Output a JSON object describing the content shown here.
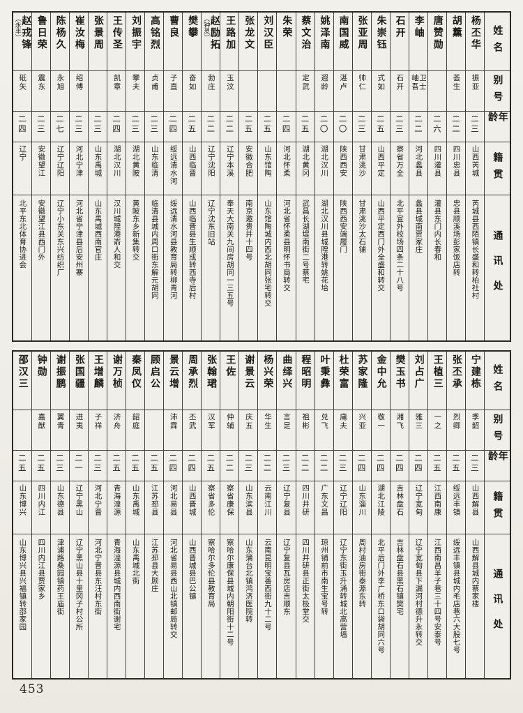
{
  "page": {
    "number": "453"
  },
  "header_labels": {
    "name": "姓名",
    "alias": "别号",
    "age": "年龄",
    "native": "籍贯",
    "contact": "通讯处"
  },
  "top_table": {
    "persons": [
      {
        "name": "杨丕华",
        "alias": "振亚",
        "age": "二三",
        "native": "山西芮城",
        "addr": "芮城县西陌镇长盛和转柏社村"
      },
      {
        "name": "胡薰",
        "alias": "荟生",
        "age": "二二",
        "native": "四川忠县",
        "addr": "忠县顺溪场彭家饭店转"
      },
      {
        "name": "唐赞勋",
        "alias": "",
        "age": "二六",
        "native": "四川灌县",
        "addr": "灌县东门内长春和"
      },
      {
        "name": "李岫",
        "alias": "卫士",
        "alias2": "岫吾",
        "age": "二二",
        "native": "河北蠡县",
        "addr": "蠡县城南贾家庄"
      },
      {
        "name": "石开",
        "alias": "石开",
        "age": "二三",
        "native": "察省万全",
        "addr": "北平宣外校场四条二十八号"
      },
      {
        "name": "朱崇钰",
        "alias": "式如",
        "age": "二五",
        "native": "山西平定",
        "addr": "山西平定西门外全盛和转交"
      },
      {
        "name": "张亚周",
        "alias": "帅仁",
        "age": "二三",
        "native": "甘肃洮沙",
        "addr": "甘肃洮沙太石铺"
      },
      {
        "name": "南国威",
        "alias": "湛卢",
        "age": "二〇",
        "native": "陕西西安",
        "addr": "陕西西安端履门"
      },
      {
        "name": "姚泽南",
        "alias": "遐龄",
        "age": "二〇",
        "native": "湖北汉川",
        "addr": "湖北汉川县城隍港转姚花坮"
      },
      {
        "name": "蔡文治",
        "alias": "定武",
        "age": "二五",
        "native": "湖北黄冈",
        "addr": "武昌长湖堤南街二号蔡宅"
      },
      {
        "name": "朱荣",
        "alias": "",
        "age": "二四",
        "native": "河北怀柔",
        "addr": "河北省怀柔县明怀书局转交"
      },
      {
        "name": "刘汉臣",
        "alias": "",
        "age": "二五",
        "native": "山东馆陶",
        "addr": "山东馆陶城内西北胡同张宅转交"
      },
      {
        "name": "张龙文",
        "alias": "",
        "age": "二五",
        "native": "安徽合肥",
        "addr": "南京邀贵井十四号"
      },
      {
        "name": "王路加",
        "alias": "玉汶",
        "age": "二二",
        "native": "辽宁本溪",
        "addr": "奉天大南关九间房胡同一三五号"
      },
      {
        "name": "赵励拓",
        "paren": "（钟灵）",
        "alias": "勃庄",
        "age": "二二",
        "native": "辽宁沈阳",
        "addr": "辽宁沈东旧站"
      },
      {
        "name": "樊攀",
        "alias": "奋如",
        "age": "二五",
        "native": "山西临晋",
        "addr": "山西临晋县生顺成转西寺后村"
      },
      {
        "name": "曹良",
        "alias": "子直",
        "age": "二四",
        "native": "绥远清水河",
        "addr": "绥远清水河县教育局转柳青河"
      },
      {
        "name": "高铭烈",
        "alias": "贞甫",
        "age": "二三",
        "native": "山东临清",
        "addr": "临清县城内周口街东解元胡同"
      },
      {
        "name": "刘振宇",
        "alias": "攀夫",
        "age": "二三",
        "native": "湖北黄陂",
        "addr": "黄陂东乡新集转交"
      },
      {
        "name": "王传圣",
        "alias": "凯章",
        "age": "二四",
        "native": "湖北汉川",
        "addr": "汉川城隍港嵛人和交"
      },
      {
        "name": "张景周",
        "alias": "",
        "age": "二三",
        "native": "山东禹城",
        "addr": "山东禹城西南官庄"
      },
      {
        "name": "崔汝梅",
        "alias": "绍傅",
        "age": "二三",
        "native": "河北宁津",
        "addr": "河北省宁津县后安州寨"
      },
      {
        "name": "陈杨久",
        "alias": "永旭",
        "age": "二七",
        "native": "辽宁辽阳",
        "addr": "辽宁小东关东兴纺织厂"
      },
      {
        "name": "鲁日荣",
        "alias": "震东",
        "age": "二三",
        "native": "安徽望江",
        "addr": "安徽望江县西门外"
      },
      {
        "name": "赵戎锋",
        "paren": "（永丰）",
        "alias": "砥矢",
        "age": "二四",
        "native": "辽宁",
        "addr": "北平东北体育协进会"
      }
    ]
  },
  "bottom_table": {
    "persons": [
      {
        "name": "宁建栋",
        "alias": "季韶",
        "age": "二三",
        "native": "山西解县",
        "addr": "山西解县城内蔡家楼"
      },
      {
        "name": "张丕承",
        "alias": "烈卿",
        "age": "二五",
        "native": "绥远丰镇",
        "addr": "绥远丰镇县城内毛店巷六大股七号"
      },
      {
        "name": "王植三",
        "alias": "一之",
        "age": "二五",
        "native": "江西南康",
        "addr": "江西南昌羊子巷三十四号安泰号"
      },
      {
        "name": "刘占广",
        "alias": "雅三",
        "age": "二四",
        "native": "辽宁宽甸",
        "addr": "辽宁宽甸县下漏河村德升永转交"
      },
      {
        "name": "樊玉书",
        "alias": "湘飞",
        "age": "二四",
        "native": "吉林盘石",
        "addr": "吉林盘石县黑石镇樊宅"
      },
      {
        "name": "金中允",
        "alias": "敬一",
        "age": "二四",
        "native": "湖北江陵",
        "addr": "北平后门外李广桥东口袋胡同六号"
      },
      {
        "name": "苏家隆",
        "alias": "兴亚",
        "age": "二四",
        "native": "山东淄川",
        "addr": "周村油房街泰源东转"
      },
      {
        "name": "杜荣富",
        "alias": "庸夫",
        "age": "二三",
        "native": "辽宁辽阳",
        "addr": "辽宁东街玉升涌转城北高营墙"
      },
      {
        "name": "叶秉彝",
        "alias": "兑飞",
        "age": "二二",
        "native": "广东文昌",
        "addr": "琼州铺前市南生宝号转"
      },
      {
        "name": "程昭明",
        "alias": "祖彬",
        "age": "二二",
        "native": "四川井研",
        "addr": "四川井研县正街太极堂交"
      },
      {
        "name": "曲绎兴",
        "alias": "言足",
        "age": "二三",
        "native": "辽宁复县",
        "addr": "辽宁复县瓦房店吉顺东"
      },
      {
        "name": "杨兴荣",
        "alias": "华生",
        "age": "二二",
        "native": "云南江川",
        "addr": "云南昆明宝善西街九十二号"
      },
      {
        "name": "谢景云",
        "alias": "庆五",
        "age": "二三",
        "native": "山东滨县",
        "addr": "山东蒲台北镇鸿济医院转"
      },
      {
        "name": "王佐",
        "alias": "仲辅",
        "age": "二二",
        "native": "察省康保",
        "addr": "察哈尔康保县城内朝阳街十二号"
      },
      {
        "name": "张翰珺",
        "alias": "汉军",
        "age": "二五",
        "native": "察省多伦",
        "addr": "察哈尔多伦县教育局"
      },
      {
        "name": "周承烈",
        "alias": "丕武",
        "age": "二四",
        "native": "山西晋城",
        "addr": "山西晋城县巴公镇"
      },
      {
        "name": "景云增",
        "alias": "沛霖",
        "age": "二四",
        "native": "河北易县",
        "addr": "河北省易县西山北镇邮局转交"
      },
      {
        "name": "顾启公",
        "alias": "",
        "age": "二五",
        "native": "江苏邳县",
        "addr": "江苏邳县大顾庄"
      },
      {
        "name": "秦凤仪",
        "alias": "韶庭",
        "age": "二五",
        "native": "山东禹城",
        "addr": "山东禹城北街"
      },
      {
        "name": "谢万桢",
        "alias": "济舟",
        "age": "二五",
        "native": "青海湟源",
        "addr": "青海湟源县城内西南街谢宅"
      },
      {
        "name": "王增麟",
        "alias": "子祥",
        "age": "二三",
        "native": "河北宁晋",
        "addr": "河北宁晋县东汪村东街"
      },
      {
        "name": "张国疆",
        "alias": "进夷",
        "age": "二一",
        "native": "辽宁黑山",
        "addr": "辽宁黑山县十里冈子村公所"
      },
      {
        "name": "谢振鹏",
        "alias": "翼青",
        "age": "二三",
        "native": "山东德县",
        "addr": "津浦路桑园镇药王庙街"
      },
      {
        "name": "钟勋",
        "alias": "嘉猷",
        "age": "二五",
        "native": "四川内江",
        "addr": "四川内江县贾家乡"
      },
      {
        "name": "邵汉三",
        "alias": "",
        "age": "二五",
        "native": "山东博兴",
        "addr": "山东博兴县兴福镇转邵家园"
      }
    ]
  }
}
